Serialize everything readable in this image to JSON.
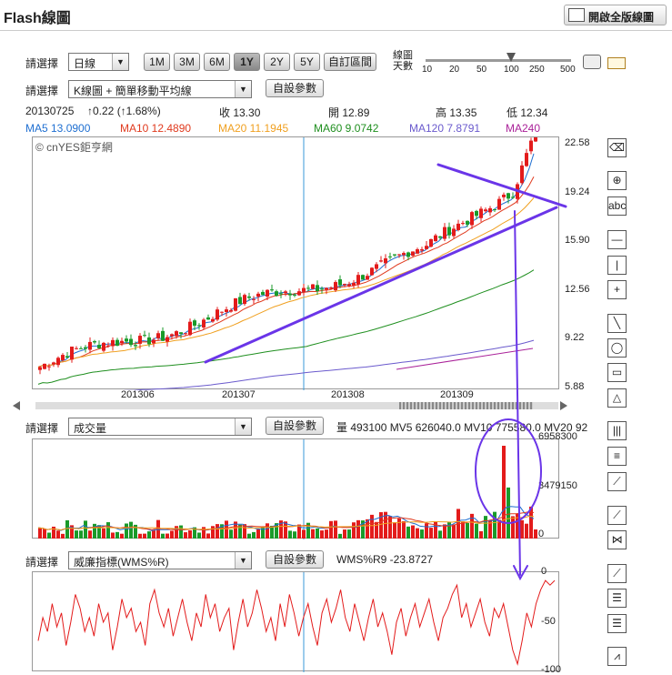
{
  "app": {
    "title": "Flash線圖",
    "full_version_label": "開啟全版線圖"
  },
  "controls": {
    "select_label": "請選擇",
    "period_value": "日線",
    "ranges": [
      "1M",
      "3M",
      "6M",
      "1Y",
      "2Y",
      "5Y",
      "自訂區間"
    ],
    "active_range": "1Y",
    "days_label_1": "線圖",
    "days_label_2": "天數",
    "days_ticks": [
      "10",
      "20",
      "50",
      "100",
      "250",
      "500"
    ],
    "days_value": 100,
    "chart_type_value": "K線圖 + 簡單移動平均線",
    "custom_params_label": "自設參數"
  },
  "quote": {
    "date": "20130725",
    "change": "↑0.22 (↑1.68%)",
    "close_label": "收 13.30",
    "open_label": "開 12.89",
    "high_label": "高 13.35",
    "low_label": "低 12.34"
  },
  "ma_legend": [
    {
      "text": "MA5 13.0900",
      "color": "#1f6fd1"
    },
    {
      "text": "MA10 12.4890",
      "color": "#e03a1e"
    },
    {
      "text": "MA20 11.1945",
      "color": "#f0a020"
    },
    {
      "text": "MA60 9.0742",
      "color": "#1f8f1f"
    },
    {
      "text": "MA120 7.8791",
      "color": "#6a5acd"
    },
    {
      "text": "MA240",
      "color": "#aa2299"
    }
  ],
  "copyright": "© cnYES鉅亨網",
  "volume_panel": {
    "indicator_value": "成交量",
    "info": "量 493100  MV5 626040.0  MV10 775580.0  MV20 92"
  },
  "wms_panel": {
    "indicator_value": "威廉指標(WMS%R)",
    "info": "WMS%R9 -23.8727"
  },
  "colors": {
    "up": "#e31b1b",
    "down": "#1a9a2a",
    "annotation": "#6a35e8"
  },
  "chart_data": [
    {
      "type": "candlestick",
      "y_ticks": [
        "22.58",
        "19.24",
        "15.90",
        "12.56",
        "9.22",
        "5.88"
      ],
      "ylim": [
        5.88,
        22.58
      ],
      "x_ticks": [
        "201306",
        "201307",
        "201308",
        "201309"
      ],
      "grid": false
    },
    {
      "type": "bar",
      "name": "成交量",
      "y_ticks": [
        "6958300",
        "3479150",
        "0"
      ],
      "ylim": [
        0,
        6958300
      ]
    },
    {
      "type": "line",
      "name": "WMS%R9",
      "y_ticks": [
        "0",
        "-50",
        "-100"
      ],
      "ylim": [
        -100,
        0
      ],
      "values": [
        -70,
        -45,
        -60,
        -30,
        -55,
        -40,
        -75,
        -50,
        -20,
        -35,
        -60,
        -45,
        -65,
        -30,
        -50,
        -40,
        -80,
        -55,
        -25,
        -45,
        -35,
        -60,
        -50,
        -75,
        -30,
        -15,
        -40,
        -55,
        -35,
        -65,
        -45,
        -25,
        -50,
        -70,
        -40,
        -55,
        -20,
        -45,
        -30,
        -60,
        -45,
        -35,
        -80,
        -50,
        -25,
        -55,
        -40,
        -15,
        -35,
        -60,
        -45,
        -70,
        -30,
        -55,
        -20,
        -40,
        -65,
        -45,
        -30,
        -55,
        -75,
        -40,
        -25,
        -50,
        -35,
        -15,
        -45,
        -60,
        -30,
        -50,
        -70,
        -45,
        -25,
        -55,
        -40,
        -60,
        -85,
        -50,
        -35,
        -65,
        -45,
        -30,
        -55,
        -40,
        -25,
        -50,
        -70,
        -45,
        -35,
        -20,
        -10,
        -45,
        -30,
        -55,
        -40,
        -25,
        -50,
        -65,
        -35,
        -45,
        -30,
        -55,
        -80,
        -95,
        -70,
        -40,
        -55,
        -30,
        -15,
        -5,
        -10,
        -5
      ]
    }
  ]
}
